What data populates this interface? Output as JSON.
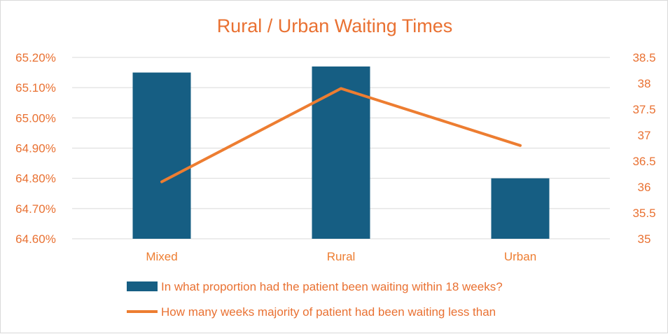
{
  "chart_data": {
    "type": "bar",
    "title": "Rural / Urban Waiting Times",
    "categories": [
      "Mixed",
      "Rural",
      "Urban"
    ],
    "series": [
      {
        "name": "In what proportion had the patient been waiting within 18 weeks?",
        "type": "bar",
        "axis": "left",
        "values": [
          65.15,
          65.17,
          64.8
        ]
      },
      {
        "name": "How many weeks majority of patient had been waiting less than",
        "type": "line",
        "axis": "right",
        "values": [
          36.1,
          37.9,
          36.8
        ]
      }
    ],
    "y_left": {
      "min": 64.6,
      "max": 65.2,
      "ticks": [
        "64.60%",
        "64.70%",
        "64.80%",
        "64.90%",
        "65.00%",
        "65.10%",
        "65.20%"
      ]
    },
    "y_right": {
      "min": 35,
      "max": 38.5,
      "ticks": [
        "35",
        "35.5",
        "36",
        "36.5",
        "37",
        "37.5",
        "38",
        "38.5"
      ]
    },
    "grid": true,
    "legend_position": "bottom",
    "colors": {
      "bar": "#165e83",
      "line": "#ed7d31",
      "text": "#e97132",
      "category_text": "#ed7d31",
      "grid": "#d9d9d9"
    }
  }
}
